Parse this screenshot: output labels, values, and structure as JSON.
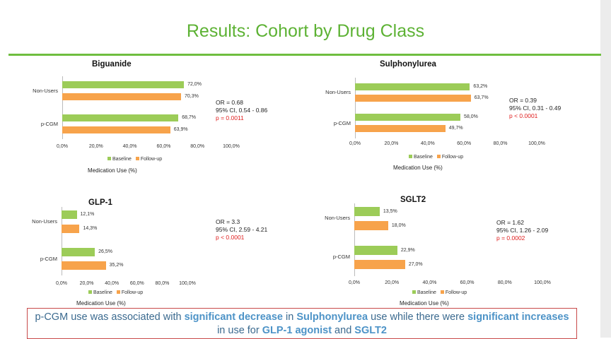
{
  "slide_title": "Results: Cohort by Drug Class",
  "legend": {
    "baseline": "Baseline",
    "followup": "Follow-up"
  },
  "xaxis_title": "Medication Use (%)",
  "tick_labels": [
    "0,0%",
    "20,0%",
    "40,0%",
    "60,0%",
    "80,0%",
    "100,0%"
  ],
  "group_labels": {
    "non_users": "Non-Users",
    "pcgm": "p-CGM"
  },
  "colors": {
    "baseline": "#9ccc58",
    "followup": "#f7a34b",
    "title_green": "#5db234",
    "p_value_red": "#e02020"
  },
  "panels": {
    "biguanide": {
      "title": "Biguanide",
      "stats": {
        "or": "OR = 0.68",
        "ci": "95% CI, 0.54 - 0.86",
        "p": "p = 0.0011"
      },
      "labels": {
        "nu_base": "72,0%",
        "nu_fu": "70,3%",
        "pc_base": "68,7%",
        "pc_fu": "63,9%"
      }
    },
    "sulphonylurea": {
      "title": "Sulphonylurea",
      "stats": {
        "or": "OR = 0.39",
        "ci": "95% CI, 0.31 - 0.49",
        "p": "p < 0.0001"
      },
      "labels": {
        "nu_base": "63,2%",
        "nu_fu": "63,7%",
        "pc_base": "58,0%",
        "pc_fu": "49,7%"
      }
    },
    "glp1": {
      "title": "GLP-1",
      "stats": {
        "or": "OR = 3.3",
        "ci": "95% CI, 2.59 - 4.21",
        "p": "p < 0.0001"
      },
      "labels": {
        "nu_base": "12,1%",
        "nu_fu": "14,3%",
        "pc_base": "26,5%",
        "pc_fu": "35,2%"
      }
    },
    "sglt2": {
      "title": "SGLT2",
      "stats": {
        "or": "OR = 1.62",
        "ci": "95% CI, 1.26 - 2.09",
        "p": "p = 0.0002"
      },
      "labels": {
        "nu_base": "13,5%",
        "nu_fu": "18,0%",
        "pc_base": "22,9%",
        "pc_fu": "27,0%"
      }
    }
  },
  "conclusion": {
    "t1": "p-CGM use was associated with ",
    "t2": "significant decrease",
    "t3": " in ",
    "t4": "Sulphonylurea",
    "t5": " use while there were ",
    "t6": "significant increases",
    "t7": " in use for ",
    "t8": "GLP-1 agonist",
    "t9": " and ",
    "t10": "SGLT2"
  },
  "chart_data": [
    {
      "type": "bar",
      "orientation": "horizontal",
      "title": "Biguanide",
      "categories": [
        "Non-Users",
        "p-CGM"
      ],
      "xlabel": "Medication Use (%)",
      "xlim": [
        0,
        100
      ],
      "series": [
        {
          "name": "Baseline",
          "values": [
            72.0,
            68.7
          ]
        },
        {
          "name": "Follow-up",
          "values": [
            70.3,
            63.9
          ]
        }
      ],
      "legend": "bottom"
    },
    {
      "type": "bar",
      "orientation": "horizontal",
      "title": "Sulphonylurea",
      "categories": [
        "Non-Users",
        "p-CGM"
      ],
      "xlabel": "Medication Use (%)",
      "xlim": [
        0,
        100
      ],
      "series": [
        {
          "name": "Baseline",
          "values": [
            63.2,
            58.0
          ]
        },
        {
          "name": "Follow-up",
          "values": [
            63.7,
            49.7
          ]
        }
      ],
      "legend": "bottom"
    },
    {
      "type": "bar",
      "orientation": "horizontal",
      "title": "GLP-1",
      "categories": [
        "Non-Users",
        "p-CGM"
      ],
      "xlabel": "Medication Use (%)",
      "xlim": [
        0,
        100
      ],
      "series": [
        {
          "name": "Baseline",
          "values": [
            12.1,
            26.5
          ]
        },
        {
          "name": "Follow-up",
          "values": [
            14.3,
            35.2
          ]
        }
      ],
      "legend": "bottom"
    },
    {
      "type": "bar",
      "orientation": "horizontal",
      "title": "SGLT2",
      "categories": [
        "Non-Users",
        "p-CGM"
      ],
      "xlabel": "Medication Use (%)",
      "xlim": [
        0,
        100
      ],
      "series": [
        {
          "name": "Baseline",
          "values": [
            13.5,
            22.9
          ]
        },
        {
          "name": "Follow-up",
          "values": [
            18.0,
            27.0
          ]
        }
      ],
      "legend": "bottom"
    }
  ]
}
